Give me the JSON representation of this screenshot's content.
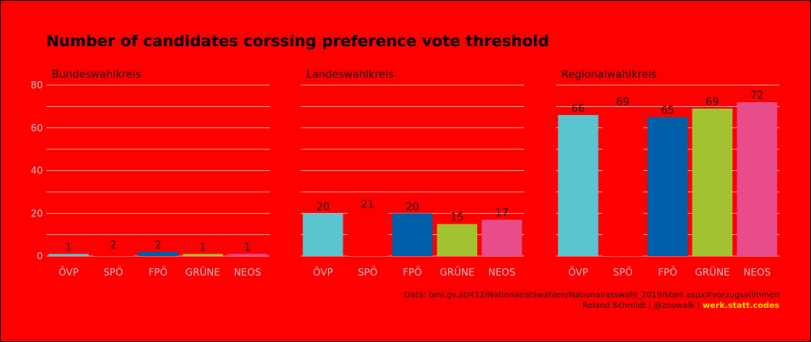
{
  "chart_data": {
    "type": "bar",
    "title": "Number of candidates corssing preference vote threshold",
    "ylim": [
      0,
      80
    ],
    "yticks": [
      0,
      20,
      40,
      60,
      80
    ],
    "grid": true,
    "categories": [
      "ÖVP",
      "SPÖ",
      "FPÖ",
      "GRÜNE",
      "NEOS"
    ],
    "colors": {
      "ÖVP": "#5bc4cf",
      "SPÖ": "#ff0000",
      "FPÖ": "#005ea8",
      "GRÜNE": "#a2c232",
      "NEOS": "#e84d8a"
    },
    "panels": [
      {
        "name": "Bundeswahlkreis",
        "values": [
          1,
          2,
          2,
          1,
          1
        ]
      },
      {
        "name": "Landeswahlkreis",
        "values": [
          20,
          21,
          20,
          15,
          17
        ]
      },
      {
        "name": "Regionalwahlkreis",
        "values": [
          66,
          69,
          65,
          69,
          72
        ]
      }
    ]
  },
  "caption": {
    "source": "Data: bmi.gv.at/412/Nationalratswahlen/Nationalratswahl_2019/start.aspx#vorzugsstimmen",
    "author": "Roland Schmidt | @zoowalk | ",
    "brand": "werk.statt.codes"
  }
}
